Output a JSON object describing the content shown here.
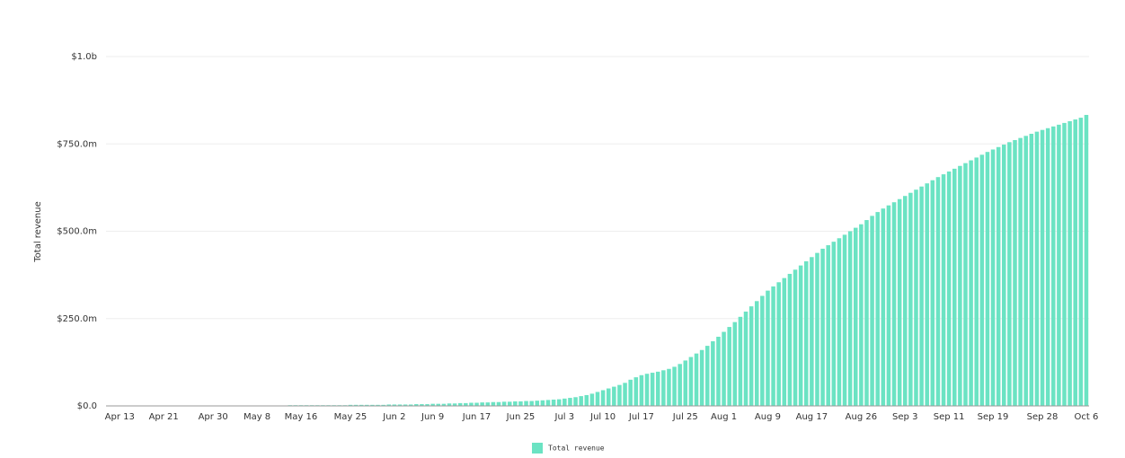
{
  "chart_data": {
    "type": "bar",
    "y_label": "Total revenue",
    "legend": "Total revenue",
    "color": "#6be3c3",
    "grid": true,
    "ylim": [
      0,
      1000
    ],
    "yticks": [
      {
        "value": 0,
        "label": "$0.0"
      },
      {
        "value": 250,
        "label": "$250.0m"
      },
      {
        "value": 500,
        "label": "$500.0m"
      },
      {
        "value": 750,
        "label": "$750.0m"
      },
      {
        "value": 1000,
        "label": "$1.0b"
      }
    ],
    "categories": [
      null,
      null,
      "Apr 13",
      null,
      null,
      null,
      null,
      null,
      null,
      null,
      "Apr 21",
      null,
      null,
      null,
      null,
      null,
      null,
      null,
      null,
      "Apr 30",
      null,
      null,
      null,
      null,
      null,
      null,
      null,
      "May 8",
      null,
      null,
      null,
      null,
      null,
      null,
      null,
      "May 16",
      null,
      null,
      null,
      null,
      null,
      null,
      null,
      null,
      "May 25",
      null,
      null,
      null,
      null,
      null,
      null,
      null,
      "Jun 2",
      null,
      null,
      null,
      null,
      null,
      null,
      "Jun 9",
      null,
      null,
      null,
      null,
      null,
      null,
      null,
      "Jun 17",
      null,
      null,
      null,
      null,
      null,
      null,
      null,
      "Jun 25",
      null,
      null,
      null,
      null,
      null,
      null,
      null,
      "Jul 3",
      null,
      null,
      null,
      null,
      null,
      null,
      "Jul 10",
      null,
      null,
      null,
      null,
      null,
      null,
      "Jul 17",
      null,
      null,
      null,
      null,
      null,
      null,
      null,
      "Jul 25",
      null,
      null,
      null,
      null,
      null,
      null,
      "Aug 1",
      null,
      null,
      null,
      null,
      null,
      null,
      null,
      "Aug 9",
      null,
      null,
      null,
      null,
      null,
      null,
      null,
      "Aug 17",
      null,
      null,
      null,
      null,
      null,
      null,
      null,
      null,
      "Aug 26",
      null,
      null,
      null,
      null,
      null,
      null,
      null,
      "Sep 3",
      null,
      null,
      null,
      null,
      null,
      null,
      null,
      "Sep 11",
      null,
      null,
      null,
      null,
      null,
      null,
      null,
      "Sep 19",
      null,
      null,
      null,
      null,
      null,
      null,
      null,
      null,
      "Sep 28",
      null,
      null,
      null,
      null,
      null,
      null,
      null,
      "Oct 6"
    ],
    "values": [
      0,
      0,
      0,
      0,
      0,
      0,
      0,
      0,
      0,
      0,
      0,
      0,
      0,
      0,
      0,
      1,
      1,
      1,
      1,
      1,
      1,
      1,
      1,
      1,
      1,
      1,
      1,
      1,
      1,
      1,
      1,
      1,
      1,
      2,
      2,
      2,
      2,
      2,
      2,
      2,
      2,
      2,
      2,
      2,
      3,
      3,
      3,
      3,
      3,
      3,
      3,
      4,
      4,
      4,
      4,
      4,
      5,
      5,
      5,
      6,
      6,
      6,
      7,
      7,
      8,
      8,
      9,
      9,
      10,
      10,
      11,
      11,
      12,
      12,
      13,
      13,
      14,
      14,
      15,
      16,
      17,
      18,
      19,
      21,
      23,
      25,
      28,
      31,
      35,
      40,
      45,
      50,
      55,
      60,
      66,
      75,
      82,
      88,
      92,
      95,
      98,
      102,
      106,
      112,
      120,
      130,
      140,
      150,
      160,
      172,
      185,
      198,
      212,
      226,
      240,
      255,
      270,
      285,
      300,
      315,
      330,
      342,
      354,
      366,
      378,
      390,
      402,
      414,
      426,
      438,
      450,
      460,
      470,
      480,
      490,
      500,
      510,
      520,
      532,
      544,
      555,
      565,
      574,
      583,
      592,
      601,
      610,
      619,
      628,
      637,
      646,
      655,
      663,
      671,
      679,
      687,
      695,
      703,
      711,
      719,
      727,
      734,
      741,
      748,
      755,
      761,
      767,
      773,
      779,
      785,
      790,
      795,
      800,
      805,
      810,
      815,
      820,
      825,
      833
    ]
  }
}
